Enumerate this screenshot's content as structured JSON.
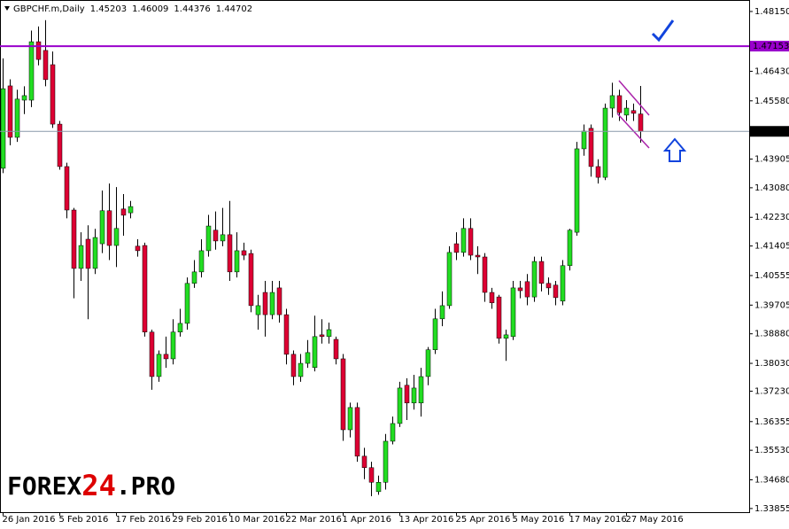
{
  "chart_data": {
    "type": "candlestick",
    "symbol": "GBPCHF.m,Daily",
    "categories": [
      "26 Jan 2016",
      null,
      null,
      null,
      null,
      null,
      null,
      null,
      "5 Feb 2016",
      null,
      null,
      null,
      null,
      null,
      null,
      null,
      "17 Feb 2016",
      null,
      null,
      null,
      null,
      null,
      null,
      null,
      "29 Feb 2016",
      null,
      null,
      null,
      null,
      null,
      null,
      null,
      "10 Mar 2016",
      null,
      null,
      null,
      null,
      null,
      null,
      null,
      "22 Mar 2016",
      null,
      null,
      null,
      null,
      null,
      null,
      null,
      "1 Apr 2016",
      null,
      null,
      null,
      null,
      null,
      null,
      null,
      "13 Apr 2016",
      null,
      null,
      null,
      null,
      null,
      null,
      null,
      "25 Apr 2016",
      null,
      null,
      null,
      null,
      null,
      null,
      null,
      "5 May 2016",
      null,
      null,
      null,
      null,
      null,
      null,
      null,
      "17 May 2016",
      null,
      null,
      null,
      null,
      null,
      null,
      null,
      "27 May 2016",
      null,
      null
    ],
    "open": [
      1.4364,
      1.4601,
      1.4453,
      1.456,
      1.456,
      1.4728,
      1.4703,
      1.4662,
      1.4491,
      1.4369,
      1.4244,
      1.4076,
      1.416,
      1.4076,
      1.4147,
      1.4242,
      1.4142,
      1.4247,
      1.4236,
      1.414,
      1.4142,
      1.3893,
      1.3765,
      1.3829,
      1.3816,
      1.3893,
      1.3918,
      1.4033,
      1.4066,
      1.4127,
      1.4186,
      1.4155,
      1.4173,
      1.4066,
      1.4127,
      1.4119,
      1.3943,
      1.4007,
      1.3943,
      1.402,
      1.3943,
      1.3829,
      1.3765,
      1.3803,
      1.3791,
      1.3885,
      1.388,
      1.3872,
      1.3816,
      1.3612,
      1.3676,
      1.3536,
      1.3503,
      1.3434,
      1.3461,
      1.3579,
      1.363,
      1.374,
      1.3689,
      1.3689,
      1.3765,
      1.3842,
      1.3931,
      1.3969,
      1.4147,
      1.4122,
      1.4191,
      1.4114,
      1.4109,
      1.4007,
      1.3994,
      1.3875,
      1.388,
      1.402,
      1.4038,
      1.3994,
      1.4096,
      1.4033,
      1.4028,
      1.3982,
      1.4084,
      1.418,
      1.442,
      1.4479,
      1.4369,
      1.4338,
      1.4537,
      1.4573,
      1.4517,
      1.453,
      1.45203
    ],
    "high": [
      1.468,
      1.462,
      1.459,
      1.46,
      1.476,
      1.4772,
      1.479,
      1.47,
      1.45,
      1.438,
      1.425,
      1.418,
      1.42,
      1.419,
      1.43,
      1.432,
      1.431,
      1.429,
      1.427,
      1.416,
      1.415,
      1.39,
      1.384,
      1.388,
      1.393,
      1.396,
      1.405,
      1.41,
      1.416,
      1.423,
      1.424,
      1.425,
      1.427,
      1.418,
      1.415,
      1.413,
      1.4,
      1.404,
      1.404,
      1.404,
      1.396,
      1.384,
      1.383,
      1.387,
      1.394,
      1.393,
      1.392,
      1.388,
      1.383,
      1.369,
      1.369,
      1.356,
      1.352,
      1.348,
      1.36,
      1.365,
      1.375,
      1.376,
      1.377,
      1.379,
      1.385,
      1.396,
      1.401,
      1.414,
      1.418,
      1.422,
      1.422,
      1.414,
      1.412,
      1.402,
      1.4,
      1.39,
      1.404,
      1.404,
      1.406,
      1.411,
      1.411,
      1.405,
      1.404,
      1.41,
      1.419,
      1.444,
      1.449,
      1.449,
      1.439,
      1.455,
      1.461,
      1.459,
      1.456,
      1.455,
      1.46009
    ],
    "low": [
      1.435,
      1.443,
      1.444,
      1.452,
      1.454,
      1.466,
      1.46,
      1.448,
      1.436,
      1.422,
      1.399,
      1.404,
      1.393,
      1.406,
      1.412,
      1.41,
      1.408,
      1.417,
      1.422,
      1.411,
      1.388,
      1.3727,
      1.375,
      1.379,
      1.38,
      1.388,
      1.39,
      1.402,
      1.405,
      1.411,
      1.413,
      1.414,
      1.404,
      1.405,
      1.41,
      1.395,
      1.39,
      1.388,
      1.393,
      1.392,
      1.38,
      1.374,
      1.375,
      1.379,
      1.378,
      1.386,
      1.386,
      1.38,
      1.358,
      1.359,
      1.352,
      1.347,
      1.3421,
      1.3425,
      1.344,
      1.357,
      1.362,
      1.364,
      1.367,
      1.365,
      1.374,
      1.383,
      1.391,
      1.396,
      1.41,
      1.411,
      1.41,
      1.406,
      1.398,
      1.396,
      1.386,
      1.381,
      1.387,
      1.399,
      1.397,
      1.398,
      1.401,
      1.4,
      1.397,
      1.397,
      1.407,
      1.417,
      1.44,
      1.434,
      1.432,
      1.433,
      1.451,
      1.45,
      1.45,
      1.45,
      1.44376
    ],
    "close": [
      1.4593,
      1.4453,
      1.4563,
      1.4573,
      1.4728,
      1.4677,
      1.4619,
      1.4491,
      1.4369,
      1.4244,
      1.4076,
      1.4142,
      1.4076,
      1.4165,
      1.4242,
      1.4142,
      1.4191,
      1.4229,
      1.4254,
      1.4127,
      1.3893,
      1.3765,
      1.3829,
      1.3816,
      1.3893,
      1.3918,
      1.4033,
      1.4066,
      1.4127,
      1.4198,
      1.4155,
      1.4173,
      1.4066,
      1.4127,
      1.4114,
      1.3969,
      1.3969,
      1.3943,
      1.4007,
      1.3943,
      1.3829,
      1.3765,
      1.3803,
      1.3834,
      1.388,
      1.388,
      1.39,
      1.3816,
      1.3612,
      1.3676,
      1.3536,
      1.3503,
      1.3461,
      1.3461,
      1.3579,
      1.363,
      1.3732,
      1.3689,
      1.3732,
      1.3765,
      1.3842,
      1.3931,
      1.3969,
      1.4122,
      1.4122,
      1.4191,
      1.4114,
      1.4109,
      1.4007,
      1.3977,
      1.3875,
      1.3885,
      1.402,
      1.4012,
      1.3994,
      1.4096,
      1.4033,
      1.402,
      1.3992,
      1.4084,
      1.4186,
      1.442,
      1.4471,
      1.4369,
      1.4338,
      1.4537,
      1.4573,
      1.4524,
      1.4537,
      1.4522,
      1.44702
    ],
    "up_color": "#22dd22",
    "down_color": "#dd0033",
    "ylim": [
      1.3375,
      1.4848
    ],
    "yticks": [
      {
        "value": 1.4815,
        "label": "1.48150"
      },
      {
        "value": 1.4643,
        "label": "1.46430"
      },
      {
        "value": 1.4558,
        "label": "1.45580"
      },
      1.43905,
      {
        "value": 1.4308,
        "label": "1.43080"
      },
      {
        "value": 1.4223,
        "label": "1.42230"
      },
      1.41405,
      1.40555,
      1.39705,
      {
        "value": 1.3888,
        "label": "1.38880"
      },
      {
        "value": 1.3803,
        "label": "1.38030"
      },
      {
        "value": 1.3723,
        "label": "1.37230"
      },
      1.36355,
      {
        "value": 1.3553,
        "label": "1.35530"
      },
      {
        "value": 1.3468,
        "label": "1.34680"
      },
      1.33855
    ],
    "hlines": [
      {
        "value": 1.47153,
        "color": "#9900cc"
      }
    ],
    "price_line_color": "#8899aa",
    "watermark": [
      "FOREX",
      "24",
      ".PRO"
    ]
  }
}
